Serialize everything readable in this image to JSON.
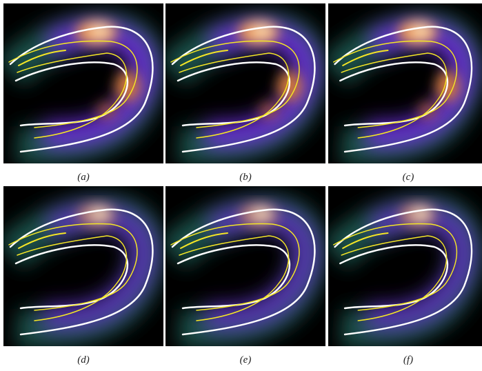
{
  "panels": [
    {
      "caption": "(a)"
    },
    {
      "caption": "(b)"
    },
    {
      "caption": "(c)"
    },
    {
      "caption": "(d)"
    },
    {
      "caption": "(e)"
    },
    {
      "caption": "(f)"
    }
  ]
}
